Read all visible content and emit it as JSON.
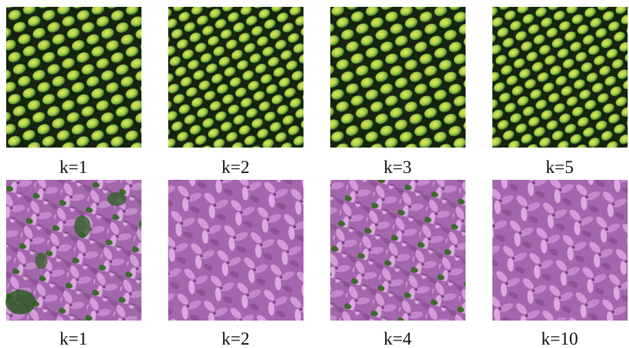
{
  "rows": [
    {
      "labels": [
        "k=1",
        "k=2",
        "k=3",
        "k=5"
      ]
    },
    {
      "labels": [
        "k=1",
        "k=2",
        "k=4",
        "k=10"
      ]
    }
  ]
}
